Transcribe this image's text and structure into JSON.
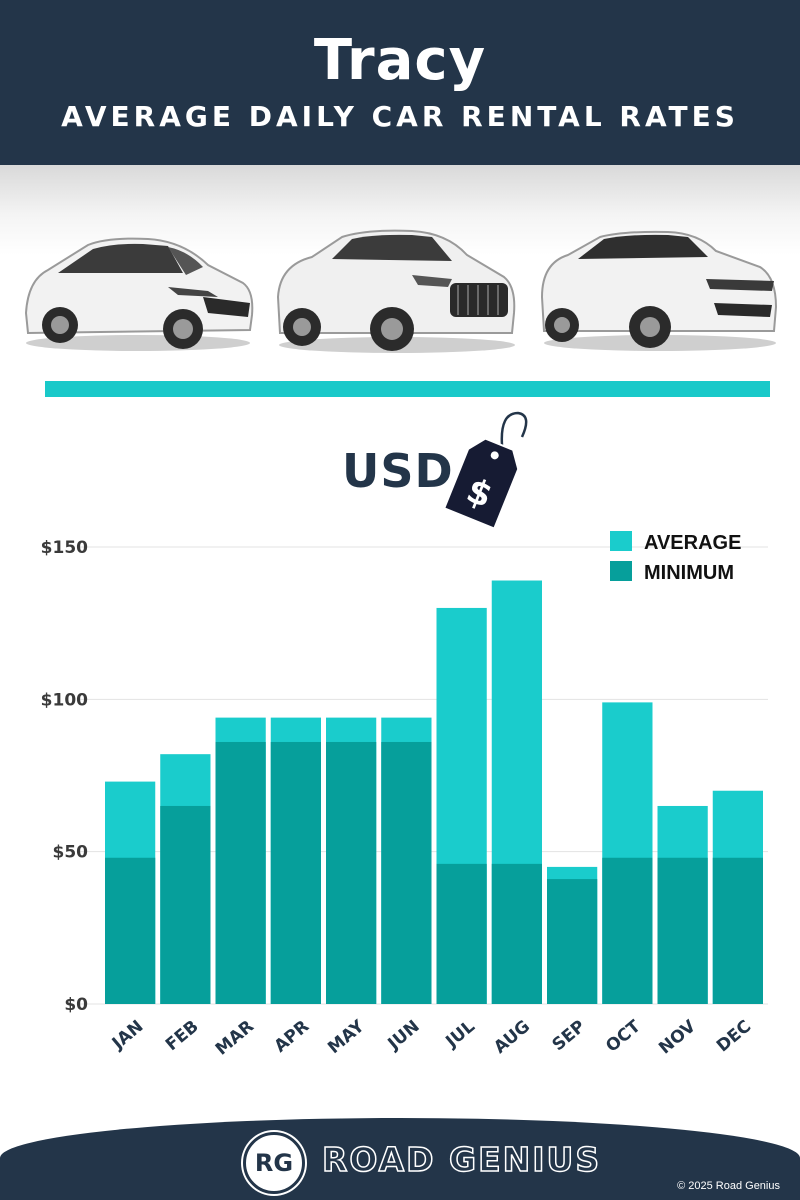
{
  "header": {
    "city": "Tracy",
    "subtitle": "AVERAGE DAILY CAR RENTAL RATES"
  },
  "currency_label": "USD",
  "price_tag_symbol": "$",
  "colors": {
    "header_bg": "#233549",
    "accent": "#19c9c9",
    "average": "#1acccc",
    "minimum": "#069f9b",
    "text_dark": "#233549"
  },
  "icons": [
    "hatchback-car-image",
    "suv-car-image",
    "luxury-suv-car-image",
    "price-tag-icon"
  ],
  "chart_data": {
    "type": "bar",
    "stacked_overlay": true,
    "categories": [
      "JAN",
      "FEB",
      "MAR",
      "APR",
      "MAY",
      "JUN",
      "JUL",
      "AUG",
      "SEP",
      "OCT",
      "NOV",
      "DEC"
    ],
    "series": [
      {
        "name": "AVERAGE",
        "values": [
          73,
          82,
          94,
          94,
          94,
          94,
          130,
          139,
          45,
          99,
          65,
          70
        ]
      },
      {
        "name": "MINIMUM",
        "values": [
          48,
          65,
          86,
          86,
          86,
          86,
          46,
          46,
          41,
          48,
          48,
          48
        ]
      }
    ],
    "y_ticks": [
      {
        "value": 0,
        "label": "$0"
      },
      {
        "value": 50,
        "label": "$50"
      },
      {
        "value": 100,
        "label": "$100"
      },
      {
        "value": 150,
        "label": "$150"
      }
    ],
    "ylim": [
      0,
      150
    ],
    "grid": true,
    "legend_position": "top-right"
  },
  "footer": {
    "logo_text": "RG",
    "brand": "ROAD GENIUS",
    "copyright": "© 2025 Road Genius"
  }
}
